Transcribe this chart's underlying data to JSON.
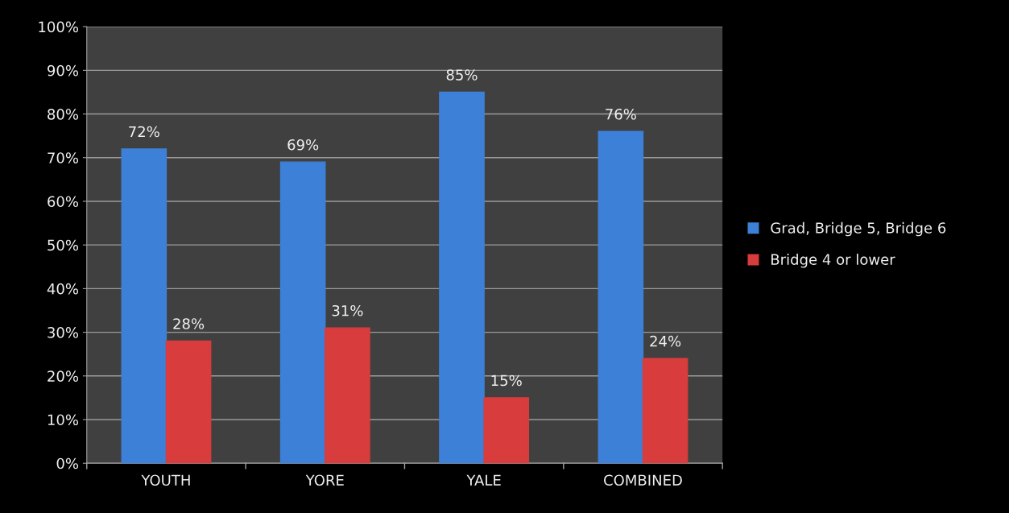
{
  "chart_data": {
    "type": "bar",
    "categories": [
      "YOUTH",
      "YORE",
      "YALE",
      "COMBINED"
    ],
    "series": [
      {
        "name": "Grad, Bridge 5, Bridge 6",
        "color": "#3d80d8",
        "values": [
          72,
          69,
          85,
          76
        ],
        "value_labels": [
          "72%",
          "69%",
          "85%",
          "76%"
        ]
      },
      {
        "name": "Bridge 4 or lower",
        "color": "#d83c3c",
        "values": [
          28,
          31,
          15,
          24
        ],
        "value_labels": [
          "28%",
          "31%",
          "15%",
          "24%"
        ]
      }
    ],
    "ylim": [
      0,
      100
    ],
    "yticks": [
      {
        "value": 0,
        "label": "0%"
      },
      {
        "value": 10,
        "label": "10%"
      },
      {
        "value": 20,
        "label": "20%"
      },
      {
        "value": 30,
        "label": "30%"
      },
      {
        "value": 40,
        "label": "40%"
      },
      {
        "value": 50,
        "label": "50%"
      },
      {
        "value": 60,
        "label": "60%"
      },
      {
        "value": 70,
        "label": "70%"
      },
      {
        "value": 80,
        "label": "80%"
      },
      {
        "value": 90,
        "label": "90%"
      },
      {
        "value": 100,
        "label": "100%"
      }
    ],
    "grid": "y",
    "legend": "right"
  }
}
